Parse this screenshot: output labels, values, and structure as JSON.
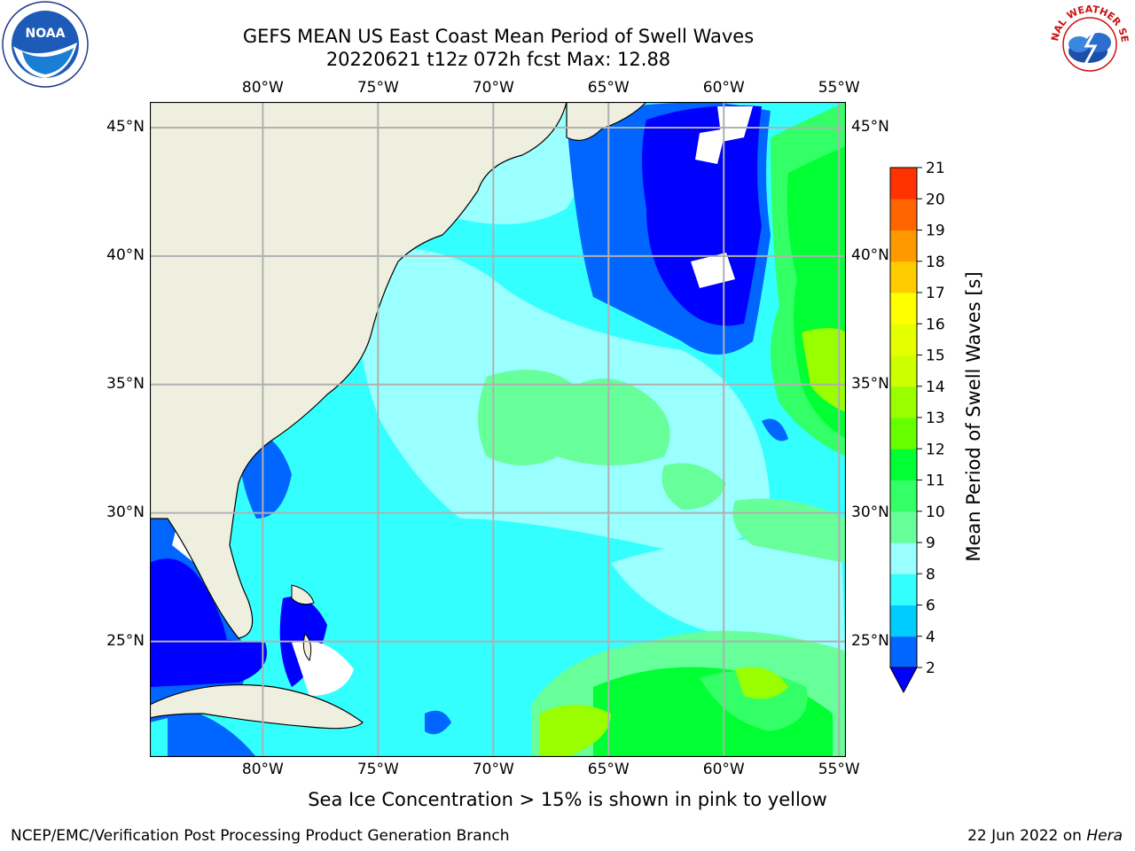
{
  "title": {
    "line1": "GEFS MEAN US East Coast Mean Period of Swell Waves",
    "line2": "20220621 t12z 072h fcst   Max: 12.88"
  },
  "map": {
    "lon_labels": [
      "80°W",
      "75°W",
      "70°W",
      "65°W",
      "60°W",
      "55°W"
    ],
    "lat_labels": [
      "45°N",
      "40°N",
      "35°N",
      "30°N",
      "25°N"
    ],
    "lon_values": [
      -80,
      -75,
      -70,
      -65,
      -60,
      -55
    ],
    "lat_values": [
      45,
      40,
      35,
      30,
      25
    ],
    "extent": {
      "lon_min": -84.9,
      "lon_max": -54.7,
      "lat_min": 20.5,
      "lat_max": 46.0
    },
    "land_color": "#efefdf",
    "grid_color": "#b0b0b0"
  },
  "colorbar": {
    "label": "Mean Period of Swell Waves [s]",
    "ticks": [
      "2",
      "4",
      "6",
      "8",
      "9",
      "10",
      "11",
      "12",
      "13",
      "14",
      "15",
      "16",
      "17",
      "18",
      "19",
      "20",
      "21"
    ],
    "colors": [
      "#0066ff",
      "#00ccff",
      "#33ffff",
      "#99ffff",
      "#66ff99",
      "#33ff66",
      "#00ff33",
      "#66ff00",
      "#99ff00",
      "#ccff00",
      "#e6ff00",
      "#ffff00",
      "#ffcc00",
      "#ff9900",
      "#ff6600",
      "#ff3300"
    ],
    "extend_color": "#0000ff"
  },
  "footer": {
    "note": "Sea Ice Concentration > 15% is shown in pink to yellow",
    "credit_left": "NCEP/EMC/Verification Post Processing Product Generation Branch",
    "date_text": "22 Jun 2022 on ",
    "platform": "Hera"
  },
  "logos": {
    "noaa_text": "NOAA",
    "nws_text": "NATIONAL WEATHER SERVICE"
  }
}
